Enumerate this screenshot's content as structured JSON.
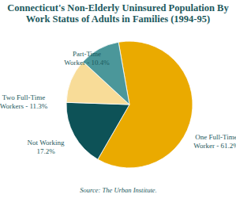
{
  "chart_data": {
    "type": "pie",
    "title": "Connecticut's Non-Elderly Uninsured Population By Work Status of Adults in Families (1994-95)",
    "categories": [
      "One Full-Time",
      "Not Working",
      "Two Full-Time",
      "Part-Time"
    ],
    "values": [
      61.2,
      17.2,
      11.3,
      10.4
    ],
    "value_labels": [
      "Worker - 61.2%",
      "17.2%",
      "Workers - 11.3%",
      "Worker - 10.4%"
    ],
    "colors": [
      "#eaaa00",
      "#0d5257",
      "#f8dc98",
      "#4b979a"
    ],
    "data_labels": true,
    "annotations": [
      "Source: The Urban Institute."
    ]
  }
}
